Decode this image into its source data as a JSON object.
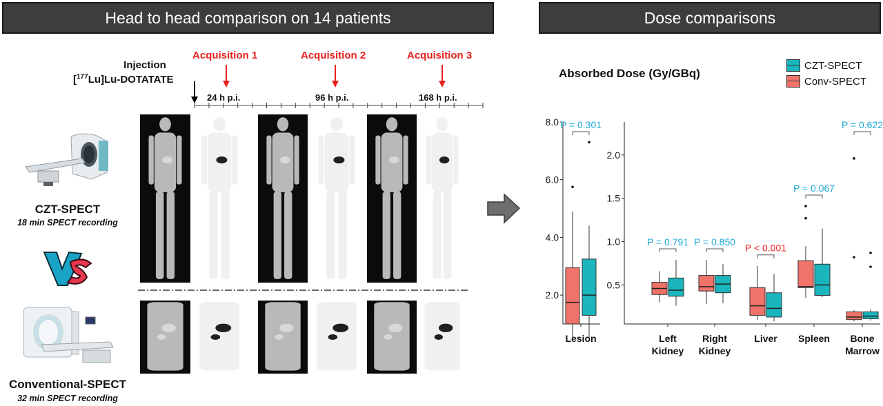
{
  "left_panel": {
    "banner": "Head to head comparison on 14 patients",
    "injection_label": "Injection",
    "tracer_prefix": "[",
    "tracer_superscript": "177",
    "tracer_suffix": "Lu]Lu-DOTATATE",
    "acquisitions": [
      {
        "label": "Acquisition 1",
        "time": "24 h p.i."
      },
      {
        "label": "Acquisition 2",
        "time": "96 h p.i."
      },
      {
        "label": "Acquisition 3",
        "time": "168 h p.i."
      }
    ],
    "czt": {
      "title": "CZT-SPECT",
      "subtitle": "18 min SPECT recording"
    },
    "conv": {
      "title": "Conventional-SPECT",
      "subtitle": "32 min SPECT recording"
    },
    "vs_label": "VS"
  },
  "right_panel": {
    "banner": "Dose comparisons",
    "title": "Absorbed Dose (Gy/GBq)",
    "legend": [
      {
        "label": "CZT-SPECT",
        "color": "#1ab5bd"
      },
      {
        "label": "Conv-SPECT",
        "color": "#f0736a"
      }
    ]
  },
  "chart_data": [
    {
      "type": "box",
      "categories": [
        "Lesion"
      ],
      "ylim": [
        1.0,
        8.0
      ],
      "yticks": [
        "2.0",
        "4.0",
        "6.0",
        "8.0"
      ],
      "ytick_values": [
        2.0,
        4.0,
        6.0,
        8.0
      ],
      "series": [
        {
          "name": "Conv-SPECT",
          "boxes": [
            {
              "min": 0.5,
              "q1": 1.0,
              "median": 1.75,
              "q3": 2.95,
              "max": 4.9,
              "outliers": [
                5.75
              ]
            }
          ]
        },
        {
          "name": "CZT-SPECT",
          "boxes": [
            {
              "min": 0.5,
              "q1": 1.3,
              "median": 2.0,
              "q3": 3.25,
              "max": 4.4,
              "outliers": [
                7.3
              ]
            }
          ]
        }
      ],
      "pvalues": [
        {
          "text": "P = 0.301",
          "significant": false
        }
      ]
    },
    {
      "type": "box",
      "categories": [
        "Left Kidney",
        "Right Kidney",
        "Liver",
        "Spleen",
        "Bone Marrow"
      ],
      "ylim": [
        0.05,
        2.38
      ],
      "yticks": [
        "0.5",
        "1.0",
        "1.5",
        "2.0"
      ],
      "ytick_values": [
        0.5,
        1.0,
        1.5,
        2.0
      ],
      "series": [
        {
          "name": "Conv-SPECT",
          "boxes": [
            {
              "min": 0.3,
              "q1": 0.39,
              "median": 0.46,
              "q3": 0.53,
              "max": 0.66,
              "outliers": []
            },
            {
              "min": 0.28,
              "q1": 0.43,
              "median": 0.48,
              "q3": 0.61,
              "max": 0.79,
              "outliers": []
            },
            {
              "min": 0.1,
              "q1": 0.15,
              "median": 0.26,
              "q3": 0.47,
              "max": 0.72,
              "outliers": []
            },
            {
              "min": 0.35,
              "q1": 0.47,
              "median": 0.48,
              "q3": 0.78,
              "max": 0.95,
              "outliers": [
                1.27,
                1.41
              ]
            },
            {
              "min": 0.08,
              "q1": 0.1,
              "median": 0.13,
              "q3": 0.19,
              "max": 0.21,
              "outliers": [
                0.82,
                1.96
              ]
            }
          ]
        },
        {
          "name": "CZT-SPECT",
          "boxes": [
            {
              "min": 0.26,
              "q1": 0.37,
              "median": 0.44,
              "q3": 0.58,
              "max": 0.79,
              "outliers": []
            },
            {
              "min": 0.29,
              "q1": 0.41,
              "median": 0.51,
              "q3": 0.61,
              "max": 0.74,
              "outliers": []
            },
            {
              "min": 0.08,
              "q1": 0.13,
              "median": 0.23,
              "q3": 0.41,
              "max": 0.63,
              "outliers": []
            },
            {
              "min": 0.36,
              "q1": 0.38,
              "median": 0.5,
              "q3": 0.74,
              "max": 1.15,
              "outliers": []
            },
            {
              "min": 0.09,
              "q1": 0.11,
              "median": 0.14,
              "q3": 0.19,
              "max": 0.22,
              "outliers": [
                0.71,
                0.87
              ]
            }
          ]
        }
      ],
      "pvalues": [
        {
          "text": "P = 0.791",
          "significant": false
        },
        {
          "text": "P = 0.850",
          "significant": false
        },
        {
          "text": "P < 0.001",
          "significant": true
        },
        {
          "text": "P = 0.067",
          "significant": false
        },
        {
          "text": "P = 0.622",
          "significant": false
        }
      ]
    }
  ]
}
